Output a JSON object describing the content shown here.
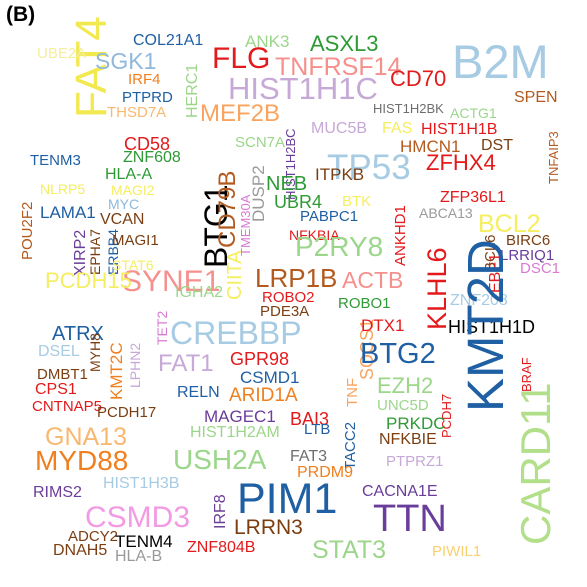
{
  "panel_label": "(B)",
  "words": [
    {
      "text": "B2M",
      "color": "#a6cbe3"
    },
    {
      "text": "FAT4",
      "color": "#f2e94e"
    },
    {
      "text": "UBE2A",
      "color": "#f4ee9a"
    },
    {
      "text": "SGK1",
      "color": "#8fb8dc"
    },
    {
      "text": "COL21A1",
      "color": "#1f5fa3"
    },
    {
      "text": "ANK3",
      "color": "#9bd68a"
    },
    {
      "text": "ASXL3",
      "color": "#2e9a35"
    },
    {
      "text": "FLG",
      "color": "#e31a1c"
    },
    {
      "text": "TNFRSF14",
      "color": "#f5908d"
    },
    {
      "text": "HIST1H1C",
      "color": "#c6a9d7"
    },
    {
      "text": "CD70",
      "color": "#e31a1c"
    },
    {
      "text": "IRF4",
      "color": "#f07f1f"
    },
    {
      "text": "PTPRD",
      "color": "#1f5fa3"
    },
    {
      "text": "THSD7A",
      "color": "#f9b870"
    },
    {
      "text": "HERC1",
      "color": "#9bd68a"
    },
    {
      "text": "MEF2B",
      "color": "#f9a35e"
    },
    {
      "text": "HIST1H2BK",
      "color": "#6e6e6e"
    },
    {
      "text": "SPEN",
      "color": "#b35a1f"
    },
    {
      "text": "ACTG1",
      "color": "#9bd68a"
    },
    {
      "text": "MUC5B",
      "color": "#c6a9d7"
    },
    {
      "text": "FAS",
      "color": "#f4ee60"
    },
    {
      "text": "HIST1H1B",
      "color": "#e31a1c"
    },
    {
      "text": "HMCN1",
      "color": "#b35a1f"
    },
    {
      "text": "DST",
      "color": "#7a3e12"
    },
    {
      "text": "TNFAIP3",
      "color": "#b35a1f"
    },
    {
      "text": "CD58",
      "color": "#e31a1c"
    },
    {
      "text": "SCN7A",
      "color": "#9bd68a"
    },
    {
      "text": "TENM3",
      "color": "#1f5fa3"
    },
    {
      "text": "ZNF608",
      "color": "#2e9a35"
    },
    {
      "text": "HLA-A",
      "color": "#2e9a35"
    },
    {
      "text": "TP53",
      "color": "#a6cbe3"
    },
    {
      "text": "ZFHX4",
      "color": "#e31a1c"
    },
    {
      "text": "DUSP2",
      "color": "#9a9a9a"
    },
    {
      "text": "HIST1H2BC",
      "color": "#6a3d9a"
    },
    {
      "text": "ITPKB",
      "color": "#7a3e12"
    },
    {
      "text": "NEB",
      "color": "#2e9a35"
    },
    {
      "text": "BTG1",
      "color": "#000000"
    },
    {
      "text": "CD79B",
      "color": "#b35a1f"
    },
    {
      "text": "NLRP5",
      "color": "#f4ee60"
    },
    {
      "text": "MAGI2",
      "color": "#f4ee60"
    },
    {
      "text": "MYC",
      "color": "#8fb8dc"
    },
    {
      "text": "ZFP36L1",
      "color": "#e31a1c"
    },
    {
      "text": "POU2F2",
      "color": "#b35a1f"
    },
    {
      "text": "LAMA1",
      "color": "#1f5fa3"
    },
    {
      "text": "VCAN",
      "color": "#7a3e12"
    },
    {
      "text": "UBR4",
      "color": "#2e9a35"
    },
    {
      "text": "BTK",
      "color": "#f4ee60"
    },
    {
      "text": "ABCA13",
      "color": "#9a9a9a"
    },
    {
      "text": "PABPC1",
      "color": "#1f5fa3"
    },
    {
      "text": "ANKHD1",
      "color": "#e31a1c"
    },
    {
      "text": "BCL2",
      "color": "#f4ee60"
    },
    {
      "text": "XIRP2",
      "color": "#6a3d9a"
    },
    {
      "text": "EPHA7",
      "color": "#7a3e12"
    },
    {
      "text": "ERBB4",
      "color": "#1f5fa3"
    },
    {
      "text": "MAGI1",
      "color": "#7a3e12"
    },
    {
      "text": "TMEM30A",
      "color": "#d97ad3"
    },
    {
      "text": "NFKBIA",
      "color": "#e31a1c"
    },
    {
      "text": "P2RY8",
      "color": "#9bd68a"
    },
    {
      "text": "KLHL6",
      "color": "#e31a1c"
    },
    {
      "text": "BCL6",
      "color": "#7a3e12"
    },
    {
      "text": "EBF1",
      "color": "#e31a1c"
    },
    {
      "text": "BIRC6",
      "color": "#7a3e12"
    },
    {
      "text": "LRRIQ1",
      "color": "#6a3d9a"
    },
    {
      "text": "DSC1",
      "color": "#d97ad3"
    },
    {
      "text": "STAT6",
      "color": "#f4ee60"
    },
    {
      "text": "SYNE1",
      "color": "#f5908d"
    },
    {
      "text": "CIITA",
      "color": "#f4ee60"
    },
    {
      "text": "LRP1B",
      "color": "#b35a1f"
    },
    {
      "text": "ACTB",
      "color": "#f5908d"
    },
    {
      "text": "ZNF208",
      "color": "#a6cbe3"
    },
    {
      "text": "PCDH15",
      "color": "#f4ee60"
    },
    {
      "text": "IGHA2",
      "color": "#9bd68a"
    },
    {
      "text": "ROBO2",
      "color": "#e31a1c"
    },
    {
      "text": "PDE3A",
      "color": "#7a3e12"
    },
    {
      "text": "ROBO1",
      "color": "#2e9a35"
    },
    {
      "text": "ATRX",
      "color": "#1f5fa3"
    },
    {
      "text": "TET2",
      "color": "#d97ad3"
    },
    {
      "text": "CREBBP",
      "color": "#a6cbe3"
    },
    {
      "text": "SOCS1",
      "color": "#f9a35e"
    },
    {
      "text": "DTX1",
      "color": "#e31a1c"
    },
    {
      "text": "HIST1H1D",
      "color": "#000000"
    },
    {
      "text": "DSEL",
      "color": "#a6cbe3"
    },
    {
      "text": "MYH8",
      "color": "#7a3e12"
    },
    {
      "text": "KMT2C",
      "color": "#f07f1f"
    },
    {
      "text": "LPHN2",
      "color": "#c6a9d7"
    },
    {
      "text": "FAT1",
      "color": "#c6a9d7"
    },
    {
      "text": "GPR98",
      "color": "#e31a1c"
    },
    {
      "text": "BTG2",
      "color": "#1f5fa3"
    },
    {
      "text": "KMT2D",
      "color": "#1f5fa3"
    },
    {
      "text": "CARD11",
      "color": "#b2df8a"
    },
    {
      "text": "DMBT1",
      "color": "#7a3e12"
    },
    {
      "text": "CPS1",
      "color": "#e31a1c"
    },
    {
      "text": "CNTNAP5",
      "color": "#e31a1c"
    },
    {
      "text": "PCDH17",
      "color": "#7a3e12"
    },
    {
      "text": "RELN",
      "color": "#1f5fa3"
    },
    {
      "text": "CSMD1",
      "color": "#1f5fa3"
    },
    {
      "text": "ARID1A",
      "color": "#f07f1f"
    },
    {
      "text": "TNF",
      "color": "#f9a35e"
    },
    {
      "text": "EZH2",
      "color": "#9bd68a"
    },
    {
      "text": "UNC5D",
      "color": "#9bd68a"
    },
    {
      "text": "PCDH7",
      "color": "#e31a1c"
    },
    {
      "text": "BRAF",
      "color": "#e31a1c"
    },
    {
      "text": "BAI3",
      "color": "#e31a1c"
    },
    {
      "text": "MAGEC1",
      "color": "#6a3d9a"
    },
    {
      "text": "TACC2",
      "color": "#1f5fa3"
    },
    {
      "text": "PRKDC",
      "color": "#2e9a35"
    },
    {
      "text": "NFKBIE",
      "color": "#7a3e12"
    },
    {
      "text": "GNA13",
      "color": "#f9b870"
    },
    {
      "text": "HIST1H2AM",
      "color": "#9bd68a"
    },
    {
      "text": "LTB",
      "color": "#1f5fa3"
    },
    {
      "text": "MYD88",
      "color": "#f07f1f"
    },
    {
      "text": "USH2A",
      "color": "#9bd68a"
    },
    {
      "text": "FAT3",
      "color": "#6e6e6e"
    },
    {
      "text": "PRDM9",
      "color": "#f07f1f"
    },
    {
      "text": "PTPRZ1",
      "color": "#c6a9d7"
    },
    {
      "text": "RIMS2",
      "color": "#6a3d9a"
    },
    {
      "text": "HIST1H3B",
      "color": "#a6cbe3"
    },
    {
      "text": "IRF8",
      "color": "#6a3d9a"
    },
    {
      "text": "PIM1",
      "color": "#1f5fa3"
    },
    {
      "text": "CACNA1E",
      "color": "#6a3d9a"
    },
    {
      "text": "TTN",
      "color": "#6a3d9a"
    },
    {
      "text": "CSMD3",
      "color": "#f29ae3"
    },
    {
      "text": "LRRN3",
      "color": "#7a3e12"
    },
    {
      "text": "ADCY2",
      "color": "#7a3e12"
    },
    {
      "text": "TENM4",
      "color": "#000000"
    },
    {
      "text": "DNAH5",
      "color": "#7a3e12"
    },
    {
      "text": "HLA-B",
      "color": "#9a9a9a"
    },
    {
      "text": "ZNF804B",
      "color": "#e31a1c"
    },
    {
      "text": "STAT3",
      "color": "#9bd68a"
    },
    {
      "text": "PIWIL1",
      "color": "#f9d070"
    }
  ]
}
